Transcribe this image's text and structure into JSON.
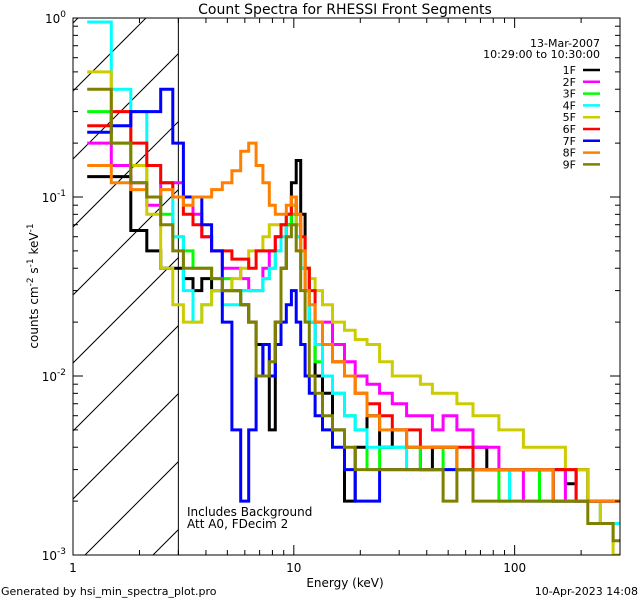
{
  "chart_data": {
    "type": "line",
    "title": "Count Spectra for RHESSI Front Segments",
    "xlabel": "Energy (keV)",
    "ylabel_parts": [
      "counts cm",
      "-2",
      " s",
      "-1",
      " keV",
      "-1"
    ],
    "xscale": "log",
    "yscale": "log",
    "xlim": [
      1,
      300
    ],
    "ylim": [
      0.001,
      1
    ],
    "x_ticks": [
      {
        "value": 1,
        "label": "1"
      },
      {
        "value": 10,
        "label": "10"
      },
      {
        "value": 100,
        "label": "100"
      }
    ],
    "y_ticks": [
      {
        "value": 1,
        "base": "10",
        "exp": "0"
      },
      {
        "value": 0.1,
        "base": "10",
        "exp": "-1"
      },
      {
        "value": 0.01,
        "base": "10",
        "exp": "-2"
      },
      {
        "value": 0.001,
        "base": "10",
        "exp": "-3"
      }
    ],
    "shaded_region": {
      "from": 1,
      "to": 3
    },
    "legend_position": "top-right",
    "date": "13-Mar-2007",
    "time_range": "10:29:00 to 10:30:00",
    "annotations": [
      "Includes Background",
      "Att A0, FDecim 2"
    ],
    "energy": [
      1.33,
      1.67,
      2.0,
      2.33,
      2.67,
      3.0,
      3.33,
      3.67,
      4.0,
      4.5,
      5.0,
      5.5,
      6.0,
      6.5,
      7.0,
      7.5,
      8.0,
      8.5,
      9.0,
      9.5,
      10,
      10.5,
      11,
      11.5,
      12,
      13,
      14,
      16,
      18,
      20,
      23,
      26,
      30,
      35,
      40,
      45,
      50,
      60,
      70,
      80,
      90,
      100,
      120,
      140,
      160,
      180,
      200,
      230,
      260,
      300
    ],
    "series": [
      {
        "name": "1F",
        "color": "#000000",
        "values": [
          0.13,
          0.13,
          0.065,
          0.05,
          0.04,
          0.04,
          0.035,
          0.03,
          0.035,
          0.03,
          0.03,
          0.03,
          0.025,
          0.02,
          0.015,
          0.01,
          0.005,
          0.02,
          0.04,
          0.07,
          0.12,
          0.16,
          0.08,
          0.04,
          0.02,
          0.01,
          0.008,
          0.005,
          0.002,
          0.004,
          0.006,
          0.004,
          0.005,
          0.004,
          0.003,
          0.004,
          0.004,
          0.003,
          0.004,
          0.003,
          0.003,
          0.003,
          0.003,
          0.003,
          0.003,
          0.0025,
          0.003,
          0.002,
          0.002,
          0.002
        ]
      },
      {
        "name": "2F",
        "color": "#ff00ff",
        "values": [
          0.2,
          0.15,
          0.12,
          0.09,
          0.12,
          0.12,
          0.1,
          0.08,
          0.06,
          0.05,
          0.04,
          0.04,
          0.035,
          0.03,
          0.03,
          0.04,
          0.05,
          0.06,
          0.07,
          0.08,
          0.09,
          0.07,
          0.04,
          0.03,
          0.02,
          0.015,
          0.02,
          0.015,
          0.012,
          0.01,
          0.009,
          0.008,
          0.007,
          0.006,
          0.006,
          0.005,
          0.006,
          0.005,
          0.004,
          0.004,
          0.003,
          0.003,
          0.002,
          0.003,
          0.002,
          0.003,
          0.002,
          0.002,
          0.0015,
          0.0015
        ]
      },
      {
        "name": "3F",
        "color": "#00ff00",
        "values": [
          0.3,
          0.2,
          0.15,
          0.1,
          0.08,
          0.06,
          0.05,
          0.04,
          0.04,
          0.035,
          0.035,
          0.03,
          0.03,
          0.03,
          0.03,
          0.035,
          0.04,
          0.05,
          0.06,
          0.07,
          0.08,
          0.06,
          0.04,
          0.03,
          0.02,
          0.012,
          0.01,
          0.008,
          0.006,
          0.005,
          0.003,
          0.004,
          0.004,
          0.004,
          0.003,
          0.003,
          0.004,
          0.003,
          0.003,
          0.003,
          0.002,
          0.003,
          0.003,
          0.002,
          0.002,
          0.002,
          0.002,
          0.002,
          0.0015,
          0.0015
        ]
      },
      {
        "name": "4F",
        "color": "#00ffff",
        "values": [
          0.95,
          0.4,
          0.3,
          0.15,
          0.12,
          0.06,
          0.03,
          0.02,
          0.025,
          0.03,
          0.025,
          0.025,
          0.03,
          0.03,
          0.03,
          0.035,
          0.04,
          0.05,
          0.06,
          0.08,
          0.1,
          0.06,
          0.04,
          0.03,
          0.02,
          0.015,
          0.01,
          0.008,
          0.006,
          0.005,
          0.004,
          0.004,
          0.004,
          0.003,
          0.003,
          0.003,
          0.003,
          0.003,
          0.003,
          0.003,
          0.003,
          0.002,
          0.002,
          0.002,
          0.002,
          0.002,
          0.002,
          0.002,
          0.0015,
          0.0015
        ]
      },
      {
        "name": "5F",
        "color": "#cccc00",
        "values": [
          0.5,
          0.3,
          0.15,
          0.08,
          0.04,
          0.025,
          0.02,
          0.02,
          0.025,
          0.03,
          0.03,
          0.035,
          0.04,
          0.05,
          0.05,
          0.06,
          0.07,
          0.07,
          0.07,
          0.08,
          0.09,
          0.07,
          0.05,
          0.04,
          0.035,
          0.03,
          0.025,
          0.02,
          0.018,
          0.016,
          0.015,
          0.012,
          0.01,
          0.01,
          0.009,
          0.008,
          0.008,
          0.007,
          0.006,
          0.006,
          0.005,
          0.005,
          0.004,
          0.004,
          0.004,
          0.003,
          0.003,
          0.002,
          0.0015,
          0.001
        ]
      },
      {
        "name": "6F",
        "color": "#ff0000",
        "values": [
          0.25,
          0.3,
          0.2,
          0.15,
          0.12,
          0.1,
          0.08,
          0.07,
          0.06,
          0.05,
          0.05,
          0.045,
          0.045,
          0.04,
          0.05,
          0.05,
          0.05,
          0.06,
          0.07,
          0.08,
          0.1,
          0.08,
          0.06,
          0.04,
          0.03,
          0.02,
          0.015,
          0.012,
          0.01,
          0.008,
          0.007,
          0.006,
          0.005,
          0.005,
          0.004,
          0.004,
          0.004,
          0.004,
          0.003,
          0.003,
          0.003,
          0.003,
          0.003,
          0.003,
          0.003,
          0.003,
          0.002,
          0.002,
          0.002,
          0.002
        ]
      },
      {
        "name": "7F",
        "color": "#0000ff",
        "values": [
          0.23,
          0.25,
          0.3,
          0.3,
          0.4,
          0.2,
          0.1,
          0.1,
          0.07,
          0.05,
          0.02,
          0.005,
          0.002,
          0.005,
          0.01,
          0.015,
          0.01,
          0.015,
          0.02,
          0.025,
          0.03,
          0.02,
          0.015,
          0.01,
          0.008,
          0.006,
          0.005,
          0.004,
          0.003,
          0.002,
          0.002,
          0.003,
          0.003,
          0.003,
          0.003,
          0.003,
          0.003,
          0.003,
          0.003,
          0.003,
          0.003,
          0.003,
          0.003,
          0.003,
          0.002,
          0.002,
          0.002,
          0.002,
          0.002,
          0.002
        ]
      },
      {
        "name": "8F",
        "color": "#ff8000",
        "values": [
          0.15,
          0.12,
          0.11,
          0.1,
          0.11,
          0.1,
          0.09,
          0.1,
          0.1,
          0.11,
          0.12,
          0.14,
          0.18,
          0.2,
          0.15,
          0.12,
          0.09,
          0.08,
          0.08,
          0.09,
          0.1,
          0.08,
          0.05,
          0.03,
          0.025,
          0.02,
          0.015,
          0.012,
          0.01,
          0.008,
          0.006,
          0.005,
          0.005,
          0.004,
          0.004,
          0.004,
          0.004,
          0.003,
          0.003,
          0.003,
          0.003,
          0.003,
          0.003,
          0.003,
          0.002,
          0.002,
          0.002,
          0.002,
          0.002,
          0.002
        ]
      },
      {
        "name": "9F",
        "color": "#808000",
        "values": [
          0.4,
          0.2,
          0.12,
          0.1,
          0.07,
          0.05,
          0.04,
          0.04,
          0.04,
          0.035,
          0.03,
          0.03,
          0.025,
          0.02,
          0.01,
          0.01,
          0.012,
          0.02,
          0.04,
          0.06,
          0.07,
          0.05,
          0.03,
          0.02,
          0.01,
          0.008,
          0.006,
          0.005,
          0.004,
          0.003,
          0.003,
          0.003,
          0.003,
          0.003,
          0.003,
          0.003,
          0.002,
          0.003,
          0.002,
          0.002,
          0.002,
          0.002,
          0.002,
          0.002,
          0.002,
          0.002,
          0.002,
          0.0015,
          0.0015,
          0.0012
        ]
      }
    ]
  },
  "footer": {
    "generated_by": "Generated by hsi_min_spectra_plot.pro",
    "timestamp": "10-Apr-2023 14:08"
  }
}
